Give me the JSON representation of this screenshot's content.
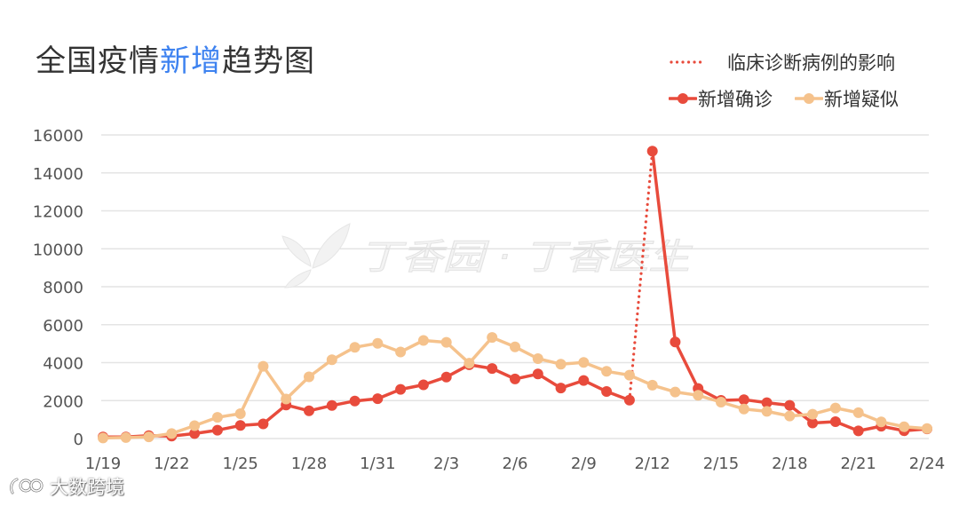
{
  "chart_data": {
    "type": "line",
    "title": "全国疫情新增趋势图",
    "title_highlight": "新增",
    "title_highlight_color": "#3d82f0",
    "x": [
      "1/19",
      "1/20",
      "1/21",
      "1/22",
      "1/23",
      "1/24",
      "1/25",
      "1/26",
      "1/27",
      "1/28",
      "1/29",
      "1/30",
      "1/31",
      "2/1",
      "2/2",
      "2/3",
      "2/4",
      "2/5",
      "2/6",
      "2/7",
      "2/8",
      "2/9",
      "2/10",
      "2/11",
      "2/12",
      "2/13",
      "2/14",
      "2/15",
      "2/16",
      "2/17",
      "2/18",
      "2/19",
      "2/20",
      "2/21",
      "2/22",
      "2/23",
      "2/24"
    ],
    "x_ticks": [
      "1/19",
      "1/22",
      "1/25",
      "1/28",
      "1/31",
      "2/3",
      "2/6",
      "2/9",
      "2/12",
      "2/15",
      "2/18",
      "2/21",
      "2/24"
    ],
    "y_ticks": [
      0,
      2000,
      4000,
      6000,
      8000,
      10000,
      12000,
      14000,
      16000
    ],
    "ylim": [
      0,
      16000
    ],
    "grid": true,
    "legend": "top-right",
    "series": [
      {
        "name": "新增确诊",
        "color": "#e84b3c",
        "values": [
          80,
          80,
          150,
          130,
          260,
          440,
          690,
          770,
          1770,
          1460,
          1740,
          1980,
          2100,
          2590,
          2830,
          3240,
          3890,
          3690,
          3140,
          3400,
          2660,
          3060,
          2480,
          2020,
          15150,
          5090,
          2640,
          2010,
          2050,
          1890,
          1750,
          820,
          890,
          400,
          650,
          410,
          510
        ]
      },
      {
        "name": "新增疑似",
        "color": "#f5c28c",
        "values": [
          30,
          50,
          90,
          260,
          680,
          1120,
          1310,
          3810,
          2080,
          3250,
          4150,
          4810,
          5020,
          4560,
          5170,
          5070,
          3970,
          5330,
          4830,
          4210,
          3920,
          4010,
          3540,
          3340,
          2810,
          2450,
          2280,
          1920,
          1560,
          1430,
          1190,
          1280,
          1610,
          1360,
          880,
          620,
          530
        ]
      }
    ],
    "annotation": {
      "label": "临床诊断病例的影响",
      "from": "2/11",
      "to": "2/12",
      "style": "dotted",
      "color": "#e84b3c"
    }
  },
  "watermark": {
    "icon": "leaf-logo-icon",
    "text": "丁香园 · 丁香医生"
  },
  "footer_watermark": {
    "icon": "brand-logo-icon",
    "text": "大数跨境"
  }
}
